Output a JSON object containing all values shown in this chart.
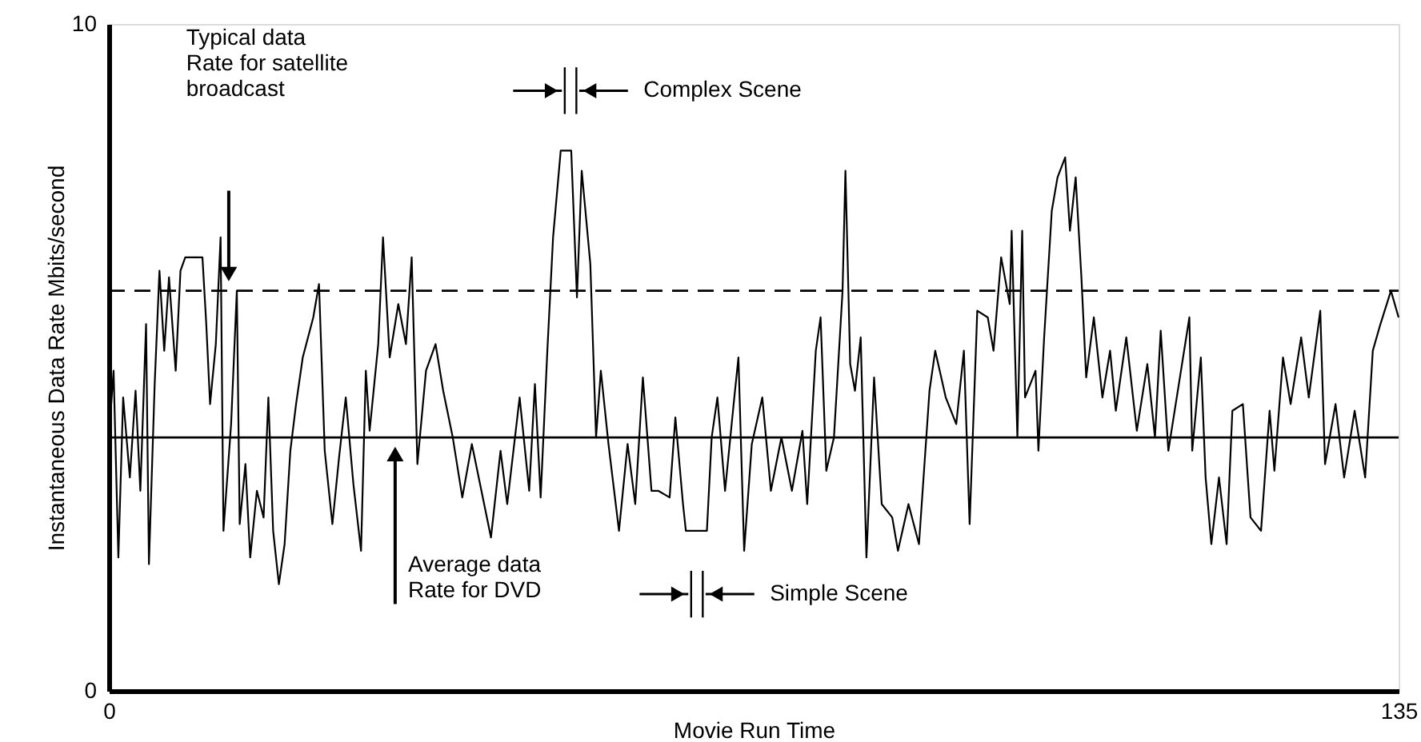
{
  "chart_data": {
    "type": "line",
    "xlabel": "Movie Run Time",
    "ylabel": "Instantaneous Data Rate Mbits/second",
    "xlim": [
      0,
      135
    ],
    "ylim": [
      0,
      10
    ],
    "xticks": [
      0,
      135
    ],
    "yticks": [
      0,
      10
    ],
    "marker": "none",
    "line_style": "solid",
    "series": [
      {
        "color": "#000000",
        "x": [
          0,
          0.5,
          1,
          1.5,
          2.2,
          2.8,
          3.3,
          3.9,
          4.2,
          4.8,
          5.3,
          5.8,
          6.3,
          7,
          7.5,
          8,
          9.8,
          10.2,
          10.6,
          11.2,
          11.7,
          12,
          12.8,
          13.4,
          13.7,
          14.3,
          14.8,
          15.5,
          16.2,
          16.7,
          17.2,
          17.8,
          18.4,
          19,
          19.6,
          20.3,
          21.4,
          22,
          22.6,
          23.4,
          24.1,
          24.8,
          25.6,
          26.4,
          26.9,
          27.3,
          28.2,
          28.7,
          29.4,
          30.3,
          31.1,
          31.7,
          32.3,
          33.2,
          34.2,
          35,
          36,
          37,
          38,
          39,
          40,
          41,
          41.7,
          43,
          44,
          44.6,
          45.2,
          45.9,
          46.5,
          47.3,
          48.4,
          49,
          49.5,
          50.4,
          51,
          51.5,
          52.3,
          53.4,
          54.3,
          55.1,
          55.9,
          56.8,
          57.5,
          58.7,
          59.3,
          60.1,
          60.4,
          62.6,
          63.1,
          63.7,
          64.5,
          65.4,
          65.9,
          66.5,
          67.3,
          68.4,
          69.3,
          70.4,
          71.5,
          72.6,
          73.1,
          74,
          74.5,
          75.1,
          75.9,
          76.8,
          77.1,
          77.6,
          78.1,
          78.7,
          79.3,
          80.1,
          80.9,
          82,
          82.6,
          83.7,
          84.8,
          85.9,
          86.5,
          87.6,
          88.7,
          89.5,
          90.1,
          90.9,
          92,
          92.6,
          93.4,
          94.3,
          94.5,
          95.1,
          95.6,
          95.9,
          97,
          97.3,
          97.9,
          98.7,
          99.3,
          100.1,
          100.6,
          101.2,
          101.8,
          102.3,
          103.1,
          104,
          104.8,
          105.4,
          106.5,
          107.6,
          108.7,
          109.5,
          110.1,
          110.9,
          112,
          113.1,
          113.4,
          114.3,
          114.8,
          115.4,
          116.2,
          117,
          117.6,
          118.7,
          119.5,
          120.6,
          121.5,
          122,
          122.9,
          123.7,
          124.8,
          125.6,
          126.8,
          127.3,
          128.4,
          129.3,
          130.4,
          131.5,
          132.3,
          133.1,
          134.2,
          135
        ],
        "values": [
          3.8,
          4.8,
          2.0,
          4.4,
          3.2,
          4.5,
          3.0,
          5.5,
          1.9,
          4.6,
          6.3,
          5.1,
          6.2,
          4.8,
          6.3,
          6.5,
          6.5,
          5.5,
          4.3,
          5.2,
          6.8,
          2.4,
          4.0,
          6.0,
          2.5,
          3.4,
          2.0,
          3.0,
          2.6,
          4.4,
          2.4,
          1.6,
          2.2,
          3.6,
          4.3,
          5.0,
          5.6,
          6.1,
          3.6,
          2.5,
          3.5,
          4.4,
          3.1,
          2.1,
          4.8,
          3.9,
          5.2,
          6.8,
          5.0,
          5.8,
          5.2,
          6.5,
          3.4,
          4.8,
          5.2,
          4.5,
          3.8,
          2.9,
          3.7,
          3.0,
          2.3,
          3.6,
          2.8,
          4.4,
          3.0,
          4.6,
          2.9,
          5.1,
          6.8,
          8.1,
          8.1,
          5.9,
          7.8,
          6.4,
          3.8,
          4.8,
          3.7,
          2.4,
          3.7,
          2.8,
          4.7,
          3.0,
          3.0,
          2.9,
          4.1,
          2.8,
          2.4,
          2.4,
          3.8,
          4.4,
          3.0,
          4.3,
          5.0,
          2.1,
          3.7,
          4.4,
          3.0,
          3.8,
          3.0,
          3.9,
          2.8,
          5.1,
          5.6,
          3.3,
          3.8,
          6.0,
          7.8,
          4.9,
          4.5,
          5.3,
          2.0,
          4.7,
          2.8,
          2.6,
          2.1,
          2.8,
          2.2,
          4.5,
          5.1,
          4.4,
          4.0,
          5.1,
          2.5,
          5.7,
          5.6,
          5.1,
          6.5,
          5.8,
          6.9,
          3.8,
          6.9,
          4.4,
          4.8,
          3.6,
          5.3,
          7.2,
          7.7,
          8.0,
          6.9,
          7.7,
          6.2,
          4.7,
          5.6,
          4.4,
          5.1,
          4.2,
          5.3,
          3.9,
          4.9,
          3.8,
          5.4,
          3.6,
          4.6,
          5.6,
          3.6,
          5.0,
          3.2,
          2.2,
          3.2,
          2.2,
          4.2,
          4.3,
          2.6,
          2.4,
          4.2,
          3.3,
          5.0,
          4.3,
          5.3,
          4.4,
          5.7,
          3.4,
          4.3,
          3.2,
          4.2,
          3.2,
          5.1,
          5.5,
          6.0,
          5.6
        ]
      }
    ],
    "ref_lines": [
      {
        "axis": "y",
        "value": 6,
        "line_style": "dashed",
        "color": "#000000"
      },
      {
        "axis": "y",
        "value": 3.8,
        "line_style": "solid",
        "color": "#000000"
      }
    ],
    "annotations": [
      "Typical data\nRate for satellite\nbroadcast",
      "Average data\nRate for DVD",
      "Complex Scene",
      "Simple Scene"
    ]
  }
}
